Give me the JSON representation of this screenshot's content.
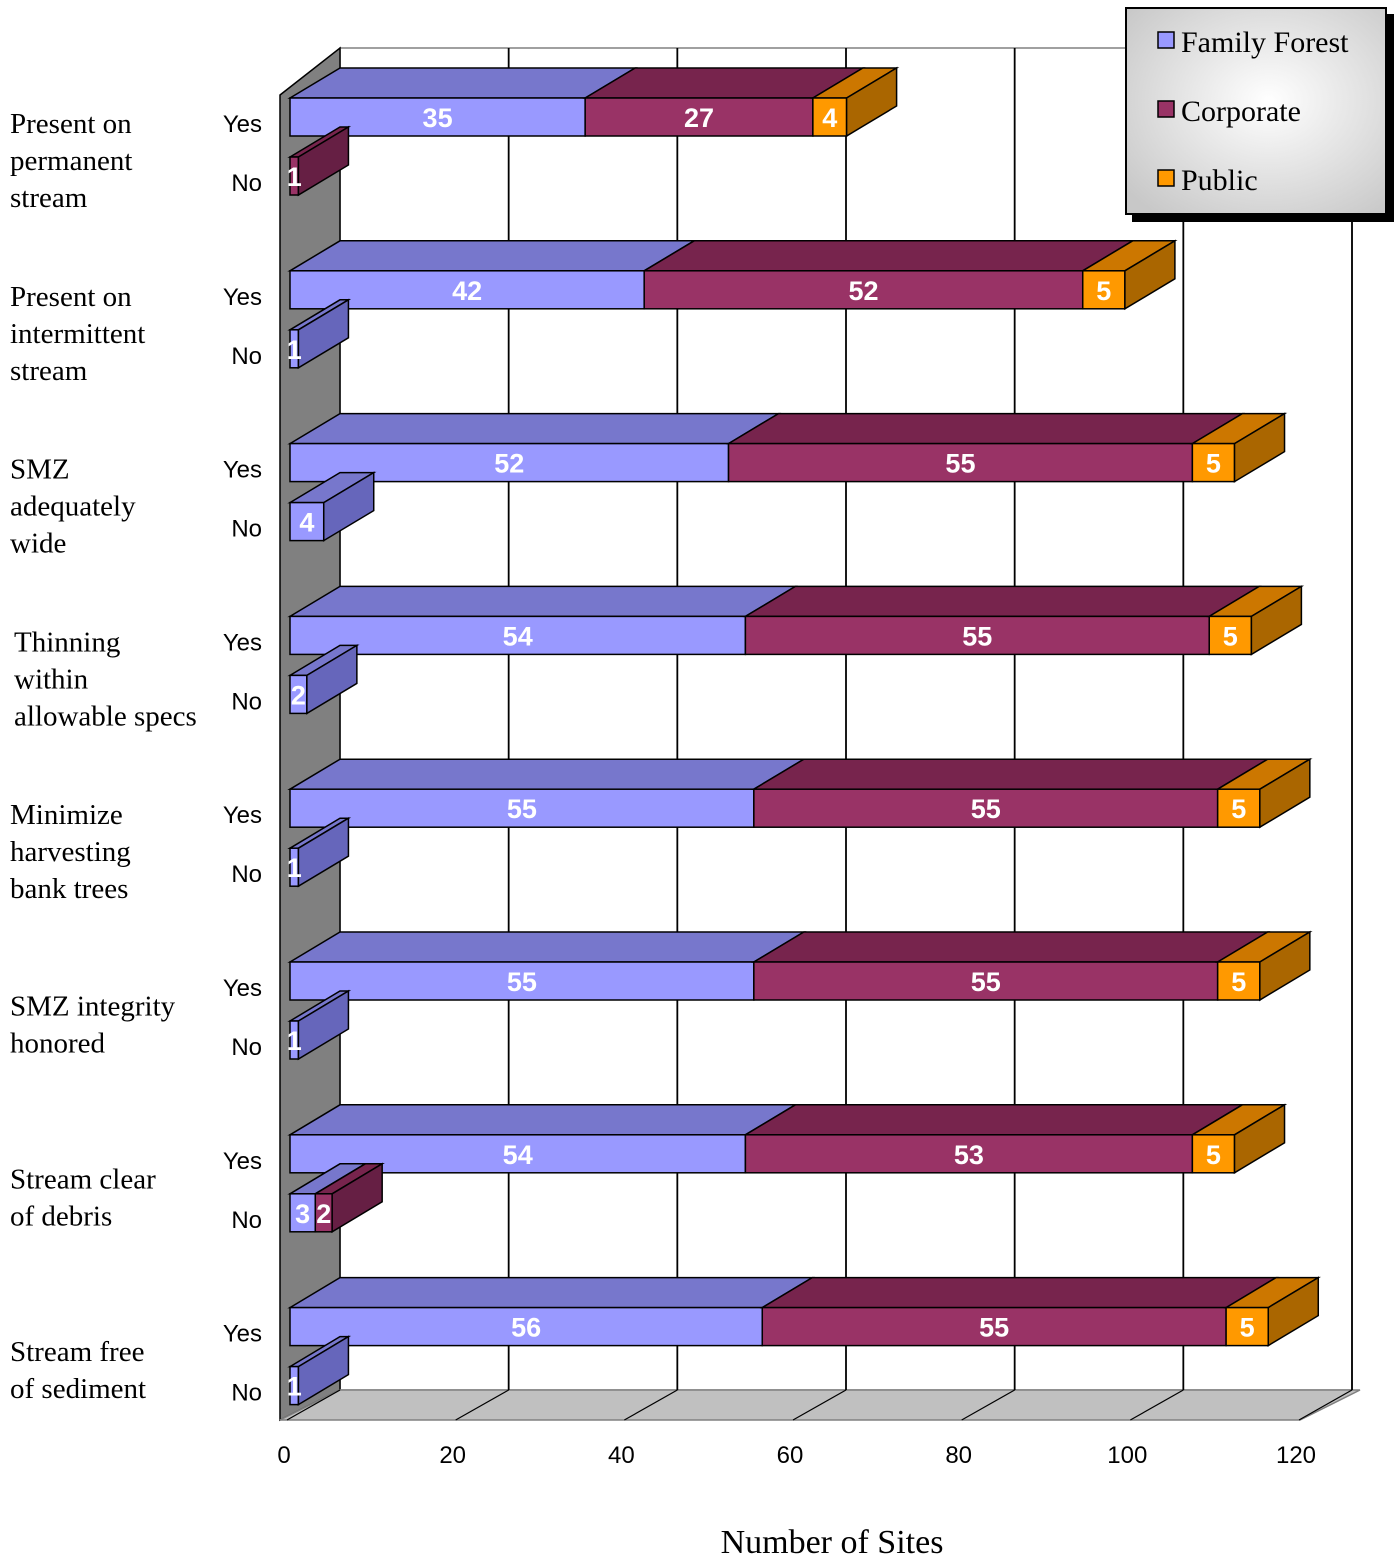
{
  "chart_data": {
    "type": "bar",
    "orientation": "horizontal",
    "stacked": true,
    "three_d": true,
    "xlabel": "Number of Sites",
    "xlim": [
      0,
      120
    ],
    "xticks": [
      "0",
      "20",
      "40",
      "60",
      "80",
      "100",
      "120"
    ],
    "grid": true,
    "legend_position": "top-right",
    "series": [
      {
        "name": "Family Forest",
        "color": "#9999ff",
        "shade_top": "#7777cc",
        "shade_side": "#6666bb"
      },
      {
        "name": "Corporate",
        "color": "#993366",
        "shade_top": "#77244d",
        "shade_side": "#661f44"
      },
      {
        "name": "Public",
        "color": "#ff9900",
        "shade_top": "#cc7700",
        "shade_side": "#aa6600"
      }
    ],
    "groups": [
      {
        "label": [
          "Present on",
          "permanent",
          "stream"
        ],
        "rows": [
          {
            "label": "Yes",
            "values": [
              35,
              27,
              4
            ],
            "labels": [
              "35",
              "27",
              "4"
            ]
          },
          {
            "label": "No",
            "values": [
              0,
              1,
              0
            ],
            "labels": [
              "",
              "1",
              ""
            ]
          }
        ]
      },
      {
        "label": [
          "Present on",
          "intermittent",
          "stream"
        ],
        "rows": [
          {
            "label": "Yes",
            "values": [
              42,
              52,
              5
            ],
            "labels": [
              "42",
              "52",
              "5"
            ]
          },
          {
            "label": "No",
            "values": [
              1,
              0,
              0
            ],
            "labels": [
              "1",
              "",
              ""
            ]
          }
        ]
      },
      {
        "label": [
          "SMZ",
          "adequately",
          "wide"
        ],
        "rows": [
          {
            "label": "Yes",
            "values": [
              52,
              55,
              5
            ],
            "labels": [
              "52",
              "55",
              "5"
            ]
          },
          {
            "label": "No",
            "values": [
              4,
              0,
              0
            ],
            "labels": [
              "4",
              "",
              ""
            ]
          }
        ]
      },
      {
        "label": [
          "Thinning",
          "within",
          "allowable specs"
        ],
        "rows": [
          {
            "label": "Yes",
            "values": [
              54,
              55,
              5
            ],
            "labels": [
              "54",
              "55",
              "5"
            ]
          },
          {
            "label": "No",
            "values": [
              2,
              0,
              0
            ],
            "labels": [
              "2",
              "",
              ""
            ]
          }
        ]
      },
      {
        "label": [
          "Minimize",
          "harvesting",
          "bank trees"
        ],
        "rows": [
          {
            "label": "Yes",
            "values": [
              55,
              55,
              5
            ],
            "labels": [
              "55",
              "55",
              "5"
            ]
          },
          {
            "label": "No",
            "values": [
              1,
              0,
              0
            ],
            "labels": [
              "1",
              "",
              ""
            ]
          }
        ]
      },
      {
        "label": [
          "SMZ integrity",
          "honored"
        ],
        "rows": [
          {
            "label": "Yes",
            "values": [
              55,
              55,
              5
            ],
            "labels": [
              "55",
              "55",
              "5"
            ]
          },
          {
            "label": "No",
            "values": [
              1,
              0,
              0
            ],
            "labels": [
              "1",
              "",
              ""
            ]
          }
        ]
      },
      {
        "label": [
          "Stream clear",
          "of debris"
        ],
        "rows": [
          {
            "label": "Yes",
            "values": [
              54,
              53,
              5
            ],
            "labels": [
              "54",
              "53",
              "5"
            ]
          },
          {
            "label": "No",
            "values": [
              3,
              2,
              0
            ],
            "labels": [
              "3",
              "2",
              ""
            ]
          }
        ]
      },
      {
        "label": [
          "Stream free",
          "of sediment"
        ],
        "rows": [
          {
            "label": "Yes",
            "values": [
              56,
              55,
              5
            ],
            "labels": [
              "56",
              "55",
              "5"
            ]
          },
          {
            "label": "No",
            "values": [
              1,
              0,
              0
            ],
            "labels": [
              "1",
              "",
              ""
            ]
          }
        ]
      }
    ]
  }
}
